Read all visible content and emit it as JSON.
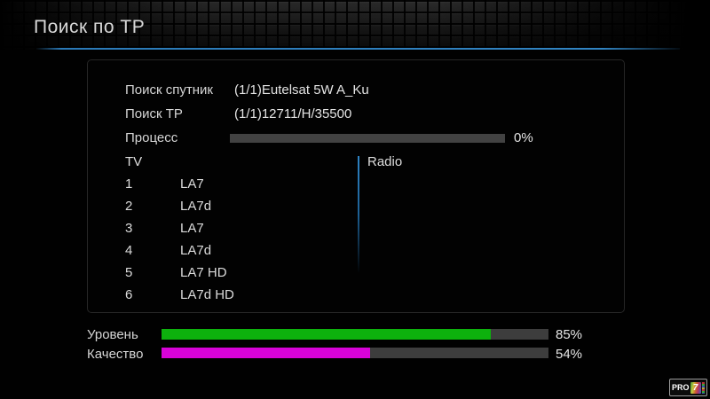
{
  "header": {
    "title": "Поиск по ТР"
  },
  "scan": {
    "satellite_label": "Поиск спутник",
    "satellite_value": "(1/1)Eutelsat 5W A_Ku",
    "tp_label": "Поиск ТР",
    "tp_value": "(1/1)12711/H/35500",
    "progress_label": "Процесс",
    "progress_percent": 0,
    "progress_text": "0%"
  },
  "channels": {
    "tv_header": "TV",
    "radio_header": "Radio",
    "tv_list": [
      {
        "num": "1",
        "name": "LA7"
      },
      {
        "num": "2",
        "name": "LA7d"
      },
      {
        "num": "3",
        "name": "LA7"
      },
      {
        "num": "4",
        "name": "LA7d"
      },
      {
        "num": "5",
        "name": "LA7 HD"
      },
      {
        "num": "6",
        "name": "LA7d HD"
      }
    ],
    "radio_list": []
  },
  "signal": {
    "level_label": "Уровень",
    "level_percent": 85,
    "level_text": "85%",
    "level_color": "#0db10d",
    "quality_label": "Качество",
    "quality_percent": 54,
    "quality_text": "54%",
    "quality_color": "#d803d8"
  },
  "logo": {
    "text": "PRO",
    "badge": "7"
  },
  "colors": {
    "accent_blue": "#2b7ab8",
    "track_gray": "#3d3d3d",
    "panel_border": "#262626"
  }
}
